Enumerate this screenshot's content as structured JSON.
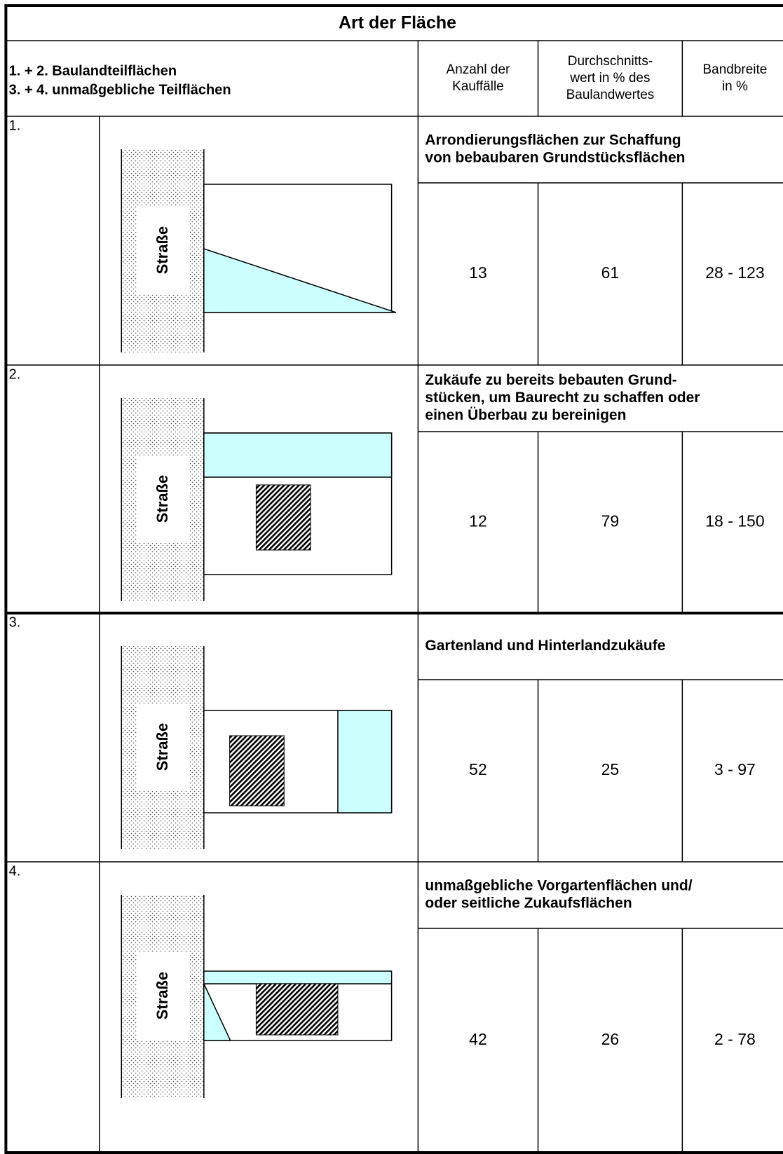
{
  "table": {
    "title": "Art der Fläche",
    "header": {
      "left": [
        "1. + 2. Baulandteilflächen",
        "3. + 4. unmaßgebliche Teilflächen"
      ],
      "count": [
        "Anzahl der",
        "Kauffälle"
      ],
      "average": [
        "Durchschnitts-",
        "wert in % des",
        "Baulandwertes"
      ],
      "range": [
        "Bandbreite",
        "in %"
      ]
    },
    "rows": [
      {
        "number": "1.",
        "street_label": "Straße",
        "description": [
          "Arrondierungsflächen zur Schaffung",
          "von bebaubaren Grundstücksflächen"
        ],
        "count": "13",
        "average": "61",
        "range": "28 - 123"
      },
      {
        "number": "2.",
        "street_label": "Straße",
        "description": [
          "Zukäufe zu bereits bebauten Grund-",
          "stücken, um Baurecht zu schaffen oder",
          "einen Überbau zu bereinigen"
        ],
        "count": "12",
        "average": "79",
        "range": "18 - 150"
      },
      {
        "number": "3.",
        "street_label": "Straße",
        "description": [
          "Gartenland und Hinterlandzukäufe"
        ],
        "count": "52",
        "average": "25",
        "range": "3 - 97"
      },
      {
        "number": "4.",
        "street_label": "Straße",
        "description": [
          "unmaßgebliche Vorgartenflächen und/",
          "oder seitliche Zukaufsflächen"
        ],
        "count": "42",
        "average": "26",
        "range": "2 - 78"
      }
    ]
  }
}
